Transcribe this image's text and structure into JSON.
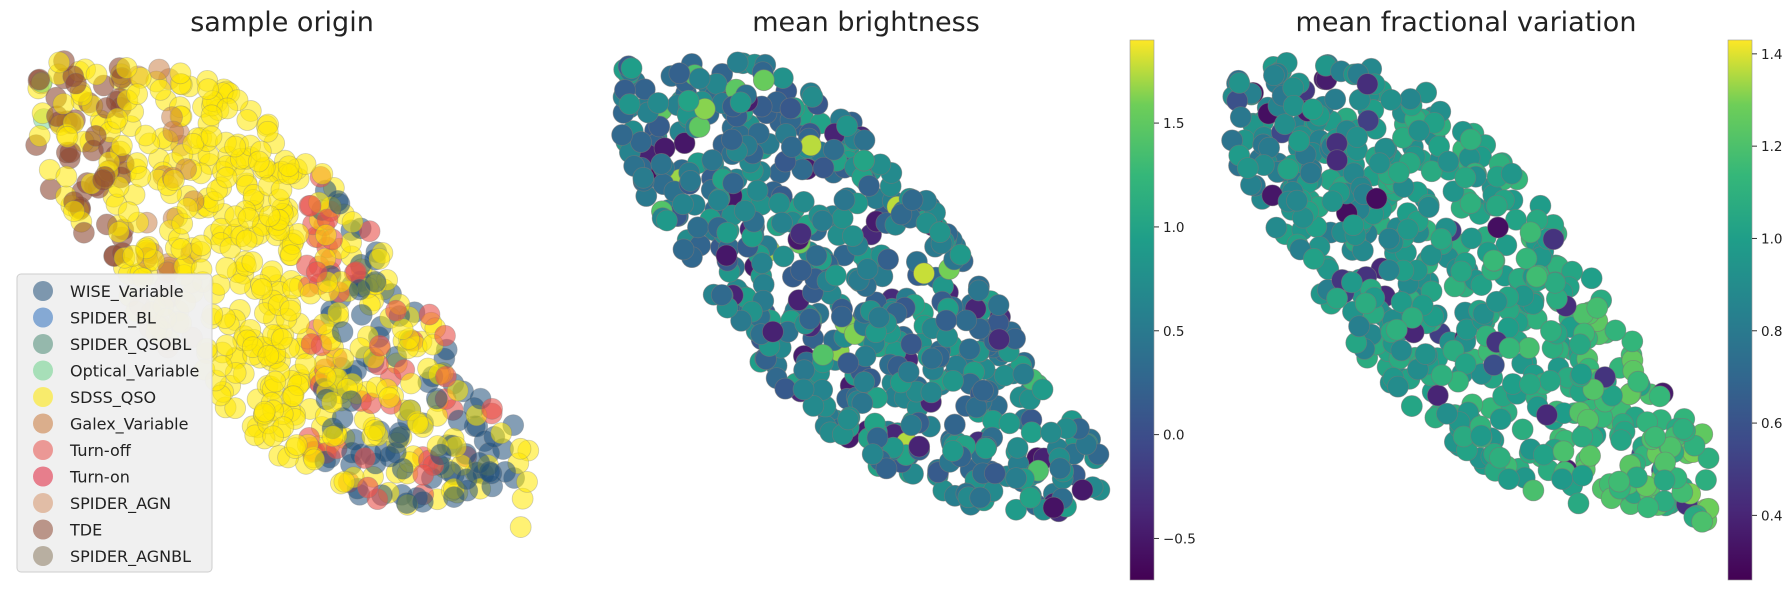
{
  "figure": {
    "panel_count": 3
  },
  "chart_data": [
    {
      "type": "scatter",
      "title": "sample origin",
      "xlabel": "",
      "ylabel": "",
      "axes_visible": false,
      "legend": {
        "placement": "lower-left",
        "entries": [
          {
            "name": "WISE_Variable",
            "color": "#1f4e79"
          },
          {
            "name": "SPIDER_BL",
            "color": "#2e6fbd"
          },
          {
            "name": "SPIDER_QSOBL",
            "color": "#4a8a75"
          },
          {
            "name": "Optical_Variable",
            "color": "#6bd28a"
          },
          {
            "name": "SDSS_QSO",
            "color": "#ffe800"
          },
          {
            "name": "Galex_Variable",
            "color": "#c8783a"
          },
          {
            "name": "Turn-off",
            "color": "#e8504a"
          },
          {
            "name": "Turn-on",
            "color": "#e0203a"
          },
          {
            "name": "SPIDER_AGN",
            "color": "#d6946a"
          },
          {
            "name": "TDE",
            "color": "#8e4a34"
          },
          {
            "name": "SPIDER_AGNBL",
            "color": "#8a7a60"
          }
        ]
      },
      "series": [
        {
          "name": "SDSS_QSO",
          "color": "#ffe800",
          "alpha": 0.55,
          "x": [
            0.12,
            0.15,
            0.18,
            0.2,
            0.22,
            0.25,
            0.28,
            0.3,
            0.33,
            0.35,
            0.38,
            0.4,
            0.43,
            0.46,
            0.48,
            0.5,
            0.53,
            0.56,
            0.58,
            0.6,
            0.63,
            0.66,
            0.68,
            0.7,
            0.73,
            0.76,
            0.78,
            0.8,
            0.83,
            0.86,
            0.88,
            0.9,
            0.17,
            0.27,
            0.37,
            0.47,
            0.57,
            0.67,
            0.77,
            0.87,
            0.32,
            0.52,
            0.72,
            0.62,
            0.42,
            0.82,
            0.92,
            0.75,
            0.65,
            0.55
          ],
          "y": [
            0.84,
            0.8,
            0.82,
            0.76,
            0.78,
            0.74,
            0.7,
            0.72,
            0.66,
            0.68,
            0.62,
            0.64,
            0.58,
            0.6,
            0.54,
            0.56,
            0.5,
            0.52,
            0.46,
            0.48,
            0.42,
            0.44,
            0.38,
            0.4,
            0.34,
            0.36,
            0.3,
            0.32,
            0.26,
            0.28,
            0.22,
            0.24,
            0.72,
            0.62,
            0.52,
            0.44,
            0.36,
            0.3,
            0.22,
            0.18,
            0.58,
            0.4,
            0.16,
            0.24,
            0.48,
            0.2,
            0.3,
            0.28,
            0.34,
            0.6
          ]
        },
        {
          "name": "WISE_Variable",
          "color": "#1f4e79",
          "alpha": 0.55,
          "x": [
            0.66,
            0.7,
            0.74,
            0.78,
            0.82,
            0.86,
            0.9,
            0.94,
            0.72,
            0.8,
            0.88,
            0.84,
            0.76,
            0.92,
            0.68,
            0.96
          ],
          "y": [
            0.62,
            0.56,
            0.5,
            0.44,
            0.38,
            0.32,
            0.26,
            0.2,
            0.4,
            0.3,
            0.22,
            0.46,
            0.34,
            0.36,
            0.48,
            0.28
          ]
        },
        {
          "name": "Turn-off",
          "color": "#e8504a",
          "alpha": 0.6,
          "x": [
            0.54,
            0.6,
            0.66,
            0.7,
            0.74,
            0.78,
            0.82,
            0.86,
            0.8,
            0.84,
            0.76,
            0.72
          ],
          "y": [
            0.56,
            0.6,
            0.58,
            0.52,
            0.46,
            0.4,
            0.3,
            0.12,
            0.08,
            0.2,
            0.26,
            0.36
          ]
        },
        {
          "name": "Galex_Variable",
          "color": "#c8783a",
          "alpha": 0.5,
          "x": [
            0.1,
            0.14,
            0.18,
            0.22,
            0.26,
            0.16,
            0.24,
            0.3
          ],
          "y": [
            0.86,
            0.78,
            0.74,
            0.66,
            0.62,
            0.7,
            0.58,
            0.54
          ]
        },
        {
          "name": "TDE",
          "color": "#8e4a34",
          "alpha": 0.6,
          "x": [
            0.06,
            0.08,
            0.1,
            0.14,
            0.18,
            0.12
          ],
          "y": [
            0.9,
            0.88,
            0.84,
            0.8,
            0.74,
            0.76
          ]
        },
        {
          "name": "Optical_Variable",
          "color": "#6bd28a",
          "alpha": 0.5,
          "x": [
            0.05,
            0.07,
            0.09
          ],
          "y": [
            0.88,
            0.92,
            0.86
          ]
        }
      ]
    },
    {
      "type": "scatter",
      "title": "mean brightness",
      "xlabel": "",
      "ylabel": "",
      "axes_visible": false,
      "colormap": "viridis",
      "colorbar": {
        "min": -0.7,
        "max": 1.9,
        "ticks": [
          "−0.5",
          "0.0",
          "0.5",
          "1.0",
          "1.5"
        ],
        "tick_values": [
          -0.5,
          0.0,
          0.5,
          1.0,
          1.5
        ]
      },
      "points": {
        "value_range": [
          -0.7,
          1.9
        ],
        "typical": 0.55
      }
    },
    {
      "type": "scatter",
      "title": "mean fractional variation",
      "xlabel": "",
      "ylabel": "",
      "axes_visible": false,
      "colormap": "viridis",
      "colorbar": {
        "min": 0.26,
        "max": 1.43,
        "ticks": [
          "0.4",
          "0.6",
          "0.8",
          "1.0",
          "1.2",
          "1.4"
        ],
        "tick_values": [
          0.4,
          0.6,
          0.8,
          1.0,
          1.2,
          1.4
        ]
      },
      "points": {
        "value_range": [
          0.26,
          1.43
        ],
        "typical": 1.0
      }
    }
  ]
}
